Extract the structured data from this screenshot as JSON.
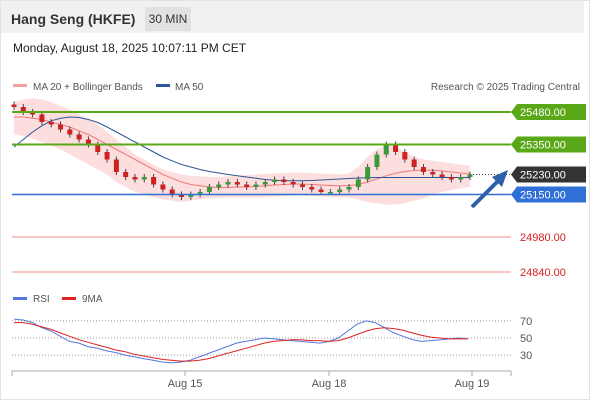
{
  "header": {
    "title": "Hang Seng (HKFE)",
    "timeframe": "30 MIN",
    "datetime": "Monday, August 18, 2025 10:07:11 PM CET"
  },
  "legend": {
    "bollinger": "MA 20 + Bollinger Bands",
    "ma50": "MA 50",
    "credit": "Research © 2025 Trading Central",
    "rsi": "RSI",
    "rsi_ma": "9MA"
  },
  "colors": {
    "bullish_level": "#5aa817",
    "pivot": "#2f6fd6",
    "support": "#f08a8a",
    "candle_up": "#3c9a3c",
    "candle_down": "#cc2222",
    "ma20_band": "#f07878",
    "ma50": "#2e5598",
    "rsi": "#5577dd",
    "rsi_ma": "#dd2222",
    "arrow": "#2e5fa8"
  },
  "chart_data": [
    {
      "type": "candlestick",
      "title": "Hang Seng (HKFE)",
      "x_ticks": [
        "Aug 15",
        "Aug 18",
        "Aug 19"
      ],
      "ylim": [
        24800,
        25560
      ],
      "last_price": 25230,
      "levels": [
        {
          "label": "25480.00",
          "value": 25480,
          "style": "resistance"
        },
        {
          "label": "25350.00",
          "value": 25350,
          "style": "resistance"
        },
        {
          "label": "25230.00",
          "value": 25230,
          "style": "last"
        },
        {
          "label": "25150.00",
          "value": 25150,
          "style": "pivot"
        },
        {
          "label": "24980.00",
          "value": 24980,
          "style": "support"
        },
        {
          "label": "24840.00",
          "value": 24840,
          "style": "support"
        }
      ],
      "close": [
        25500,
        25480,
        25470,
        25440,
        25430,
        25410,
        25390,
        25370,
        25350,
        25320,
        25290,
        25240,
        25220,
        25210,
        25220,
        25190,
        25170,
        25150,
        25140,
        25150,
        25160,
        25180,
        25190,
        25200,
        25190,
        25180,
        25190,
        25200,
        25210,
        25200,
        25190,
        25180,
        25170,
        25160,
        25160,
        25170,
        25180,
        25210,
        25260,
        25310,
        25350,
        25320,
        25290,
        25260,
        25240,
        25230,
        25220,
        25210,
        25220,
        25230
      ],
      "ma20": [
        25460,
        25460,
        25455,
        25450,
        25440,
        25430,
        25420,
        25405,
        25390,
        25370,
        25350,
        25330,
        25310,
        25290,
        25270,
        25250,
        25230,
        25215,
        25200,
        25190,
        25185,
        25180,
        25178,
        25178,
        25180,
        25180,
        25182,
        25185,
        25188,
        25190,
        25192,
        25192,
        25190,
        25188,
        25186,
        25185,
        25186,
        25190,
        25200,
        25212,
        25225,
        25235,
        25242,
        25246,
        25248,
        25247,
        25244,
        25240,
        25236,
        25232
      ],
      "bb_upper": [
        25520,
        25530,
        25535,
        25530,
        25520,
        25505,
        25490,
        25470,
        25450,
        25430,
        25400,
        25370,
        25340,
        25310,
        25290,
        25270,
        25250,
        25240,
        25230,
        25225,
        25222,
        25220,
        25220,
        25222,
        25225,
        25228,
        25230,
        25232,
        25234,
        25236,
        25238,
        25238,
        25236,
        25234,
        25232,
        25230,
        25235,
        25260,
        25300,
        25330,
        25350,
        25340,
        25320,
        25300,
        25290,
        25285,
        25280,
        25275,
        25270,
        25265
      ],
      "bb_lower": [
        25390,
        25385,
        25375,
        25360,
        25345,
        25330,
        25310,
        25290,
        25270,
        25250,
        25230,
        25200,
        25180,
        25160,
        25150,
        25140,
        25130,
        25125,
        25120,
        25125,
        25130,
        25135,
        25137,
        25138,
        25138,
        25138,
        25138,
        25140,
        25142,
        25144,
        25146,
        25146,
        25144,
        25142,
        25140,
        25140,
        25138,
        25130,
        25120,
        25115,
        25110,
        25110,
        25115,
        25125,
        25135,
        25150,
        25160,
        25168,
        25175,
        25180
      ],
      "ma50": [
        25340,
        25370,
        25400,
        25425,
        25445,
        25455,
        25460,
        25458,
        25450,
        25438,
        25420,
        25400,
        25380,
        25360,
        25340,
        25320,
        25300,
        25285,
        25270,
        25260,
        25250,
        25242,
        25236,
        25230,
        25225,
        25220,
        25215,
        25210,
        25207,
        25205,
        25205,
        25205,
        25206,
        25208,
        25210,
        25212,
        25214,
        25216,
        25217,
        25218,
        25218,
        25218,
        25218,
        25218,
        25218,
        25218,
        25218,
        25218,
        25218,
        25218
      ]
    },
    {
      "type": "line",
      "title": "RSI",
      "y_ticks": [
        70,
        50,
        30
      ],
      "ylim": [
        15,
        85
      ],
      "series": [
        {
          "name": "RSI",
          "values": [
            72,
            71,
            68,
            62,
            58,
            52,
            46,
            44,
            40,
            38,
            35,
            33,
            30,
            28,
            26,
            24,
            22,
            21,
            22,
            24,
            28,
            32,
            36,
            40,
            44,
            46,
            48,
            50,
            49,
            48,
            47,
            46,
            45,
            44,
            46,
            50,
            58,
            66,
            70,
            68,
            62,
            56,
            52,
            48,
            46,
            47,
            48,
            49,
            50,
            49
          ]
        },
        {
          "name": "9MA",
          "values": [
            68,
            68,
            66,
            63,
            60,
            56,
            52,
            48,
            45,
            42,
            39,
            36,
            34,
            31,
            29,
            27,
            25,
            24,
            23,
            23,
            24,
            26,
            29,
            32,
            35,
            38,
            41,
            44,
            46,
            47,
            48,
            48,
            47,
            47,
            46,
            47,
            50,
            54,
            58,
            61,
            62,
            61,
            59,
            56,
            53,
            51,
            50,
            49,
            49,
            49
          ]
        }
      ]
    }
  ]
}
